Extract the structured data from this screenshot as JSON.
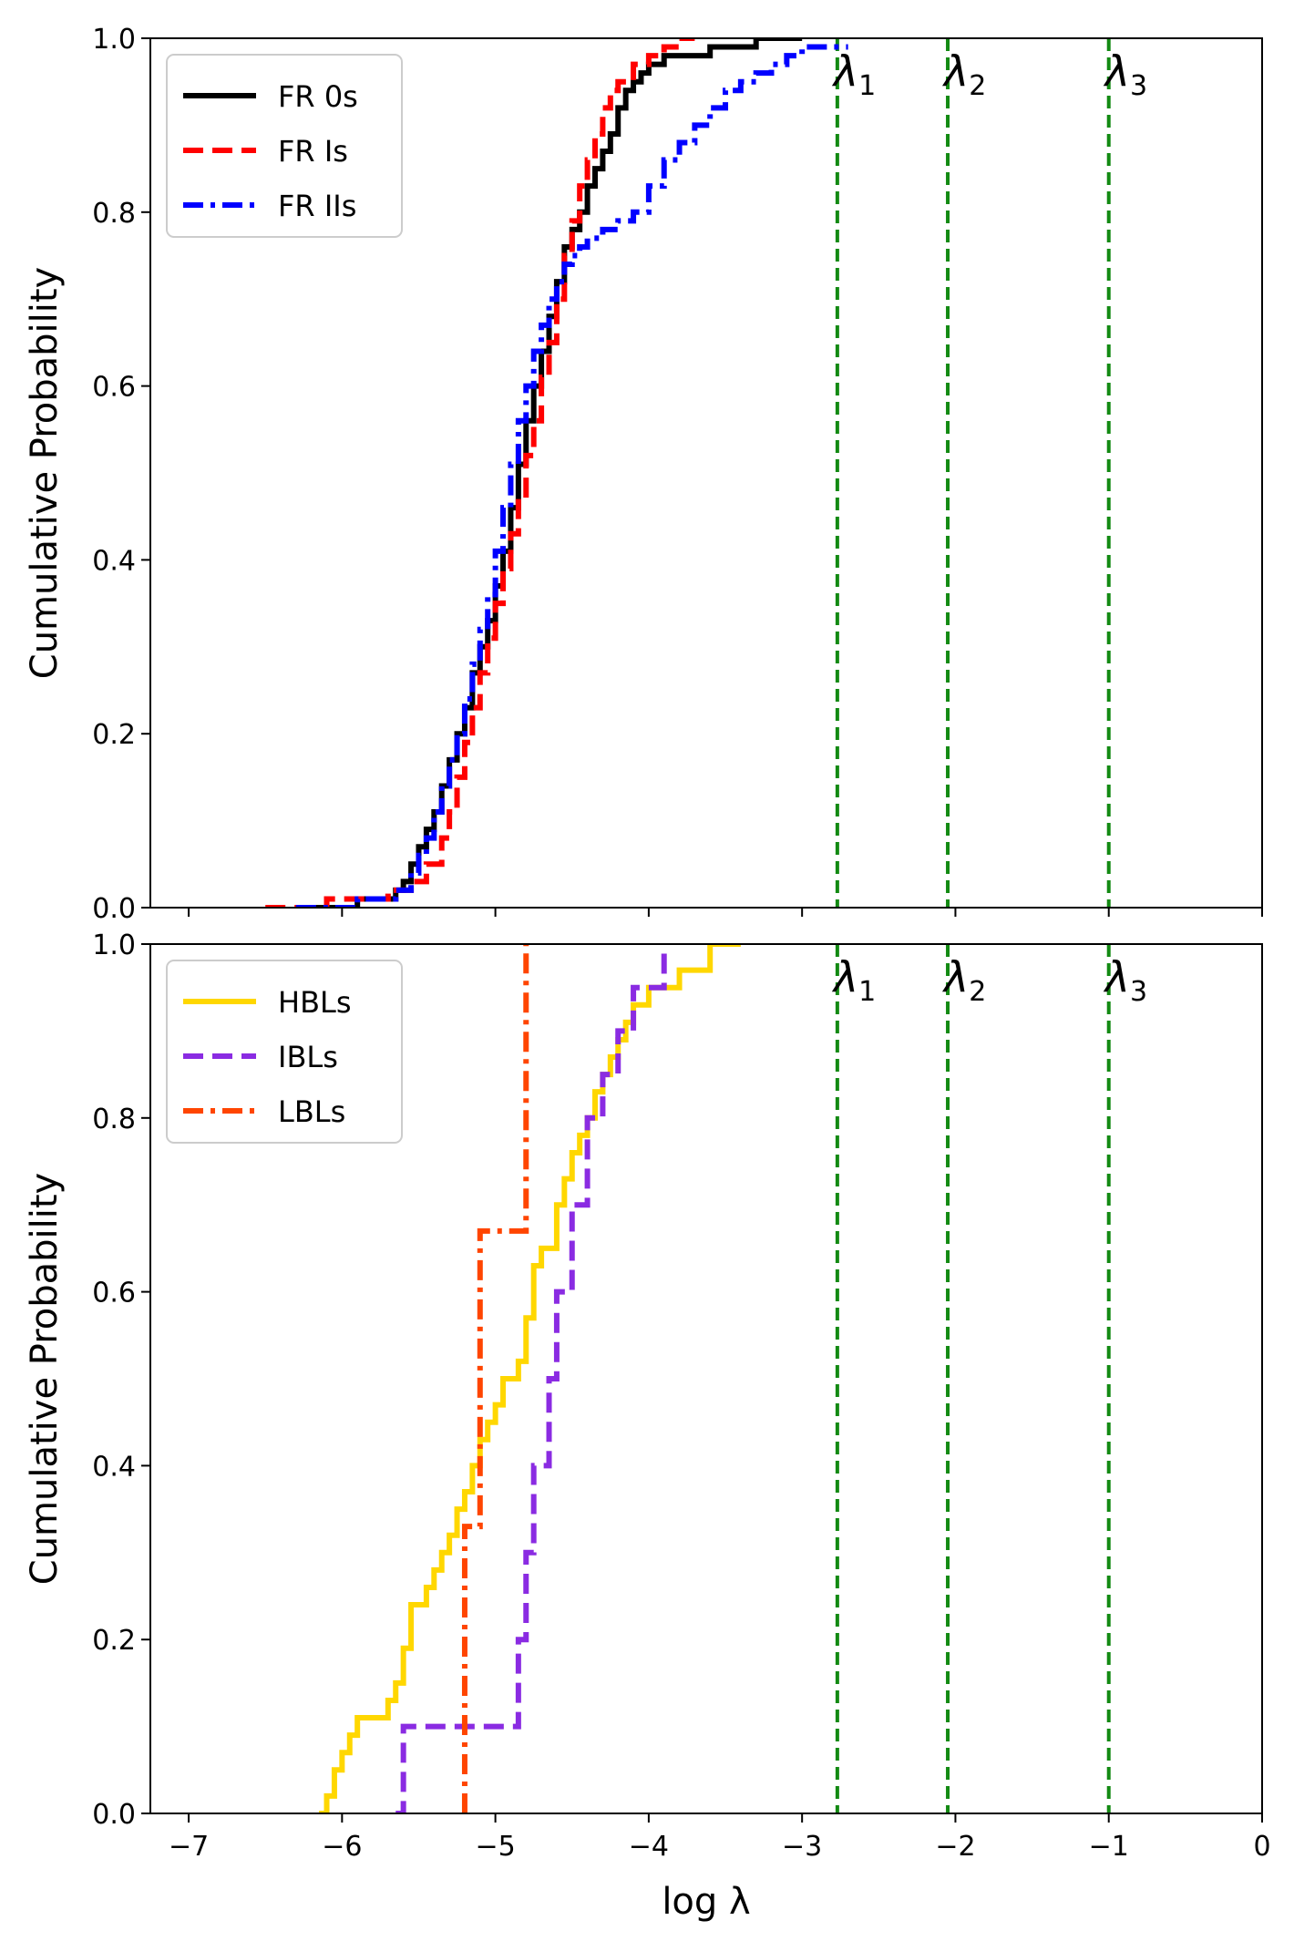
{
  "chart_data": [
    {
      "type": "line",
      "style": "step",
      "xlim": [
        -7.25,
        0
      ],
      "ylim": [
        0,
        1
      ],
      "xlabel": "",
      "ylabel": "Cumulative Probability",
      "xticks": [
        -7,
        -6,
        -5,
        -4,
        -3,
        -2,
        -1,
        0
      ],
      "xtick_labels_visible": false,
      "yticks": [
        0.0,
        0.2,
        0.4,
        0.6,
        0.8,
        1.0
      ],
      "ytick_labels": [
        "0.0",
        "0.2",
        "0.4",
        "0.6",
        "0.8",
        "1.0"
      ],
      "grid": false,
      "legend": "top-left",
      "legend_entries": [
        "FR 0s",
        "FR Is",
        "FR IIs"
      ],
      "vlines": [
        {
          "x": -2.77,
          "label": "λ",
          "sub": "1",
          "color": "#138a13"
        },
        {
          "x": -2.05,
          "label": "λ",
          "sub": "2",
          "color": "#138a13"
        },
        {
          "x": -1.0,
          "label": "λ",
          "sub": "3",
          "color": "#138a13"
        }
      ],
      "series": [
        {
          "name": "FR 0s",
          "color": "#000000",
          "dash": "solid",
          "x": [
            -6.3,
            -5.9,
            -5.65,
            -5.6,
            -5.55,
            -5.5,
            -5.45,
            -5.4,
            -5.35,
            -5.3,
            -5.25,
            -5.2,
            -5.15,
            -5.1,
            -5.05,
            -5.0,
            -4.95,
            -4.9,
            -4.85,
            -4.8,
            -4.75,
            -4.7,
            -4.65,
            -4.6,
            -4.55,
            -4.5,
            -4.45,
            -4.4,
            -4.35,
            -4.3,
            -4.25,
            -4.2,
            -4.15,
            -4.1,
            -4.05,
            -4.0,
            -3.9,
            -3.6,
            -3.3,
            -3.0
          ],
          "y": [
            0.0,
            0.01,
            0.02,
            0.03,
            0.05,
            0.07,
            0.09,
            0.11,
            0.14,
            0.17,
            0.2,
            0.23,
            0.27,
            0.3,
            0.33,
            0.37,
            0.41,
            0.46,
            0.51,
            0.56,
            0.6,
            0.64,
            0.68,
            0.72,
            0.76,
            0.78,
            0.8,
            0.83,
            0.85,
            0.87,
            0.89,
            0.92,
            0.94,
            0.95,
            0.96,
            0.97,
            0.98,
            0.99,
            1.0,
            1.0
          ]
        },
        {
          "name": "FR Is",
          "color": "#ff0000",
          "dash": "dashed",
          "x": [
            -6.5,
            -6.1,
            -5.7,
            -5.55,
            -5.45,
            -5.35,
            -5.3,
            -5.25,
            -5.2,
            -5.15,
            -5.1,
            -5.05,
            -5.0,
            -4.95,
            -4.9,
            -4.85,
            -4.8,
            -4.75,
            -4.7,
            -4.65,
            -4.6,
            -4.55,
            -4.5,
            -4.45,
            -4.4,
            -4.35,
            -4.3,
            -4.25,
            -4.2,
            -4.1,
            -4.0,
            -3.9,
            -3.8,
            -3.7
          ],
          "y": [
            0.0,
            0.01,
            0.02,
            0.03,
            0.05,
            0.08,
            0.11,
            0.15,
            0.19,
            0.23,
            0.27,
            0.31,
            0.35,
            0.39,
            0.43,
            0.47,
            0.52,
            0.56,
            0.61,
            0.65,
            0.7,
            0.75,
            0.79,
            0.83,
            0.86,
            0.89,
            0.92,
            0.94,
            0.95,
            0.97,
            0.98,
            0.99,
            1.0,
            1.0
          ]
        },
        {
          "name": "FR IIs",
          "color": "#0000ff",
          "dash": "dashdot",
          "x": [
            -6.3,
            -5.9,
            -5.65,
            -5.55,
            -5.5,
            -5.45,
            -5.4,
            -5.35,
            -5.3,
            -5.25,
            -5.2,
            -5.15,
            -5.1,
            -5.05,
            -5.0,
            -4.95,
            -4.9,
            -4.85,
            -4.8,
            -4.75,
            -4.7,
            -4.65,
            -4.6,
            -4.55,
            -4.5,
            -4.45,
            -4.4,
            -4.3,
            -4.2,
            -4.1,
            -4.0,
            -3.9,
            -3.8,
            -3.7,
            -3.6,
            -3.5,
            -3.4,
            -3.3,
            -3.2,
            -3.1,
            -3.0,
            -2.9,
            -2.7
          ],
          "y": [
            0.0,
            0.01,
            0.02,
            0.04,
            0.06,
            0.08,
            0.11,
            0.14,
            0.17,
            0.2,
            0.24,
            0.28,
            0.32,
            0.36,
            0.41,
            0.46,
            0.51,
            0.56,
            0.6,
            0.64,
            0.67,
            0.7,
            0.72,
            0.74,
            0.75,
            0.76,
            0.77,
            0.78,
            0.79,
            0.8,
            0.83,
            0.86,
            0.88,
            0.9,
            0.92,
            0.94,
            0.95,
            0.96,
            0.97,
            0.98,
            0.99,
            0.99,
            0.99
          ]
        }
      ]
    },
    {
      "type": "line",
      "style": "step",
      "xlim": [
        -7.25,
        0
      ],
      "ylim": [
        0,
        1
      ],
      "xlabel": "log λ",
      "ylabel": "Cumulative Probability",
      "xticks": [
        -7,
        -6,
        -5,
        -4,
        -3,
        -2,
        -1,
        0
      ],
      "xtick_labels": [
        "−7",
        "−6",
        "−5",
        "−4",
        "−3",
        "−2",
        "−1",
        "0"
      ],
      "yticks": [
        0.0,
        0.2,
        0.4,
        0.6,
        0.8,
        1.0
      ],
      "ytick_labels": [
        "0.0",
        "0.2",
        "0.4",
        "0.6",
        "0.8",
        "1.0"
      ],
      "grid": false,
      "legend": "top-left",
      "legend_entries": [
        "HBLs",
        "IBLs",
        "LBLs"
      ],
      "vlines": [
        {
          "x": -2.77,
          "label": "λ",
          "sub": "1",
          "color": "#138a13"
        },
        {
          "x": -2.05,
          "label": "λ",
          "sub": "2",
          "color": "#138a13"
        },
        {
          "x": -1.0,
          "label": "λ",
          "sub": "3",
          "color": "#138a13"
        }
      ],
      "series": [
        {
          "name": "HBLs",
          "color": "#ffd700",
          "dash": "solid",
          "x": [
            -6.15,
            -6.1,
            -6.05,
            -6.0,
            -5.95,
            -5.9,
            -5.7,
            -5.65,
            -5.6,
            -5.55,
            -5.45,
            -5.4,
            -5.35,
            -5.3,
            -5.25,
            -5.2,
            -5.15,
            -5.1,
            -5.05,
            -5.0,
            -4.95,
            -4.85,
            -4.8,
            -4.75,
            -4.7,
            -4.6,
            -4.55,
            -4.5,
            -4.45,
            -4.4,
            -4.35,
            -4.3,
            -4.25,
            -4.2,
            -4.15,
            -4.1,
            -4.0,
            -3.8,
            -3.6,
            -3.4
          ],
          "y": [
            0.0,
            0.02,
            0.05,
            0.07,
            0.09,
            0.11,
            0.13,
            0.15,
            0.19,
            0.24,
            0.26,
            0.28,
            0.3,
            0.32,
            0.35,
            0.37,
            0.4,
            0.43,
            0.45,
            0.47,
            0.5,
            0.52,
            0.57,
            0.63,
            0.65,
            0.7,
            0.73,
            0.76,
            0.78,
            0.8,
            0.83,
            0.85,
            0.87,
            0.89,
            0.91,
            0.93,
            0.95,
            0.97,
            1.0,
            1.0
          ]
        },
        {
          "name": "IBLs",
          "color": "#8a2be2",
          "dash": "dashed",
          "x": [
            -5.65,
            -5.6,
            -4.85,
            -4.8,
            -4.75,
            -4.65,
            -4.6,
            -4.5,
            -4.4,
            -4.3,
            -4.2,
            -4.1,
            -3.9
          ],
          "y": [
            0.0,
            0.1,
            0.2,
            0.3,
            0.4,
            0.5,
            0.6,
            0.7,
            0.8,
            0.85,
            0.9,
            0.95,
            1.0
          ]
        },
        {
          "name": "LBLs",
          "color": "#ff4500",
          "dash": "dashdot",
          "x": [
            -5.2,
            -5.1,
            -4.8
          ],
          "y": [
            0.33,
            0.67,
            1.0
          ]
        }
      ]
    }
  ]
}
